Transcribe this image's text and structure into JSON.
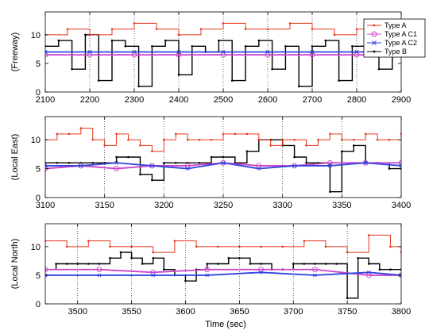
{
  "figure": {
    "xlabel": "Time (sec)"
  },
  "legend": {
    "placement": "top-right",
    "entries": [
      {
        "label": "Type A",
        "color": "#e8341c",
        "marker": "dot"
      },
      {
        "label": "Type A C1",
        "color": "#cc44cc",
        "marker": "circle"
      },
      {
        "label": "Type A C2",
        "color": "#3344dd",
        "marker": "x"
      },
      {
        "label": "Type B",
        "color": "#000000",
        "marker": "dot"
      }
    ]
  },
  "chart_data": [
    {
      "type": "line",
      "ylabel": "(Freeway)",
      "xlim": [
        2100,
        2900
      ],
      "ylim": [
        0,
        14
      ],
      "xticks": [
        2100,
        2200,
        2300,
        2400,
        2500,
        2600,
        2700,
        2800,
        2900
      ],
      "yticks": [
        0,
        5,
        10
      ],
      "grid": "vertical-dotted",
      "legend": "top-right",
      "series": [
        {
          "name": "Type A",
          "color": "#e8341c",
          "x": [
            2100,
            2150,
            2200,
            2250,
            2300,
            2350,
            2400,
            2450,
            2500,
            2550,
            2600,
            2650,
            2700,
            2750,
            2800,
            2850,
            2900
          ],
          "values": [
            10,
            11,
            10,
            11,
            12,
            11,
            10,
            11,
            12,
            11,
            11,
            12,
            11,
            10,
            11,
            12,
            11
          ]
        },
        {
          "name": "Type A C1",
          "color": "#cc44cc",
          "x": [
            2100,
            2200,
            2300,
            2400,
            2500,
            2600,
            2700,
            2800,
            2900
          ],
          "values": [
            6.5,
            6.5,
            6.5,
            6.5,
            6.5,
            6.5,
            6.5,
            6.5,
            6.5
          ]
        },
        {
          "name": "Type A C2",
          "color": "#3344dd",
          "x": [
            2100,
            2200,
            2300,
            2400,
            2500,
            2600,
            2700,
            2800,
            2900
          ],
          "values": [
            7,
            7,
            7,
            7,
            7,
            7,
            7,
            7,
            7
          ]
        },
        {
          "name": "Type B",
          "color": "#000000",
          "x": [
            2100,
            2130,
            2160,
            2190,
            2220,
            2250,
            2280,
            2310,
            2340,
            2370,
            2400,
            2430,
            2460,
            2490,
            2520,
            2550,
            2580,
            2610,
            2640,
            2670,
            2700,
            2730,
            2760,
            2790,
            2820,
            2850,
            2880,
            2900
          ],
          "values": [
            8,
            9,
            4,
            10,
            2,
            9,
            8,
            1,
            8,
            9,
            3,
            8,
            7,
            9,
            2,
            8,
            9,
            4,
            8,
            1,
            8,
            9,
            2,
            8,
            9,
            4,
            8,
            7
          ]
        }
      ]
    },
    {
      "type": "line",
      "ylabel": "(Local East)",
      "xlim": [
        3100,
        3400
      ],
      "ylim": [
        0,
        14
      ],
      "xticks": [
        3100,
        3150,
        3200,
        3250,
        3300,
        3350,
        3400
      ],
      "yticks": [
        0,
        5,
        10
      ],
      "grid": "vertical-dotted",
      "series": [
        {
          "name": "Type A",
          "color": "#e8341c",
          "x": [
            3100,
            3110,
            3120,
            3130,
            3140,
            3150,
            3160,
            3170,
            3180,
            3190,
            3200,
            3210,
            3220,
            3230,
            3240,
            3250,
            3260,
            3270,
            3280,
            3290,
            3300,
            3310,
            3320,
            3330,
            3340,
            3350,
            3360,
            3370,
            3380,
            3390,
            3400
          ],
          "values": [
            10,
            11,
            11,
            12,
            10,
            9,
            11,
            10,
            9,
            8,
            10,
            11,
            10,
            10,
            10,
            11,
            11,
            11,
            10,
            9,
            10,
            10,
            9,
            10,
            11,
            10,
            10,
            11,
            10,
            10,
            11
          ]
        },
        {
          "name": "Type A C1",
          "color": "#cc44cc",
          "x": [
            3100,
            3130,
            3160,
            3190,
            3220,
            3250,
            3280,
            3310,
            3340,
            3370,
            3400
          ],
          "values": [
            5,
            5.5,
            5,
            5.5,
            5.5,
            6,
            5.5,
            5.5,
            6,
            6,
            6
          ]
        },
        {
          "name": "Type A C2",
          "color": "#3344dd",
          "x": [
            3100,
            3130,
            3160,
            3190,
            3220,
            3250,
            3280,
            3310,
            3340,
            3370,
            3400
          ],
          "values": [
            5.5,
            5.5,
            6,
            5.5,
            5,
            6,
            5,
            5.5,
            5.5,
            6,
            5.5
          ]
        },
        {
          "name": "Type B",
          "color": "#000000",
          "x": [
            3100,
            3110,
            3120,
            3130,
            3140,
            3150,
            3160,
            3170,
            3180,
            3190,
            3200,
            3210,
            3220,
            3230,
            3240,
            3250,
            3260,
            3270,
            3280,
            3290,
            3300,
            3310,
            3320,
            3330,
            3340,
            3350,
            3360,
            3370,
            3380,
            3390,
            3400
          ],
          "values": [
            6,
            6,
            6,
            6,
            6,
            6,
            7,
            7,
            4,
            3,
            6,
            6,
            6,
            6,
            7,
            7,
            6,
            8,
            10,
            10,
            9,
            7,
            6,
            6,
            1,
            8,
            9,
            6,
            6,
            5,
            5
          ]
        }
      ]
    },
    {
      "type": "line",
      "ylabel": "(Local North)",
      "xlim": [
        3470,
        3800
      ],
      "ylim": [
        0,
        14
      ],
      "xticks": [
        3500,
        3550,
        3600,
        3650,
        3700,
        3750,
        3800
      ],
      "yticks": [
        0,
        5,
        10
      ],
      "grid": "vertical-dotted",
      "series": [
        {
          "name": "Type A",
          "color": "#e8341c",
          "x": [
            3470,
            3490,
            3510,
            3530,
            3550,
            3570,
            3590,
            3610,
            3630,
            3650,
            3670,
            3690,
            3710,
            3730,
            3750,
            3770,
            3790,
            3800
          ],
          "values": [
            11,
            10,
            11,
            10,
            10,
            9,
            11,
            10,
            10,
            10,
            10,
            10,
            11,
            10,
            9,
            12,
            10,
            9
          ]
        },
        {
          "name": "Type A C1",
          "color": "#cc44cc",
          "x": [
            3470,
            3520,
            3570,
            3620,
            3670,
            3720,
            3770,
            3800
          ],
          "values": [
            6,
            6,
            5.5,
            6,
            6,
            6,
            5,
            5
          ]
        },
        {
          "name": "Type A C2",
          "color": "#3344dd",
          "x": [
            3470,
            3520,
            3570,
            3620,
            3670,
            3720,
            3770,
            3800
          ],
          "values": [
            5,
            5,
            5,
            5,
            5.5,
            5,
            5.5,
            5
          ]
        },
        {
          "name": "Type B",
          "color": "#000000",
          "x": [
            3470,
            3480,
            3490,
            3500,
            3510,
            3520,
            3530,
            3540,
            3550,
            3560,
            3570,
            3580,
            3590,
            3600,
            3610,
            3620,
            3630,
            3640,
            3650,
            3660,
            3670,
            3680,
            3690,
            3700,
            3710,
            3720,
            3730,
            3740,
            3750,
            3760,
            3770,
            3780,
            3790,
            3800
          ],
          "values": [
            6,
            7,
            7,
            7,
            7,
            7,
            8,
            9,
            8,
            7,
            8,
            6,
            5,
            4,
            6,
            7,
            7,
            8,
            8,
            7,
            7,
            6,
            6,
            7,
            7,
            7,
            7,
            7,
            1,
            8,
            7,
            6,
            6,
            6
          ]
        }
      ]
    }
  ]
}
